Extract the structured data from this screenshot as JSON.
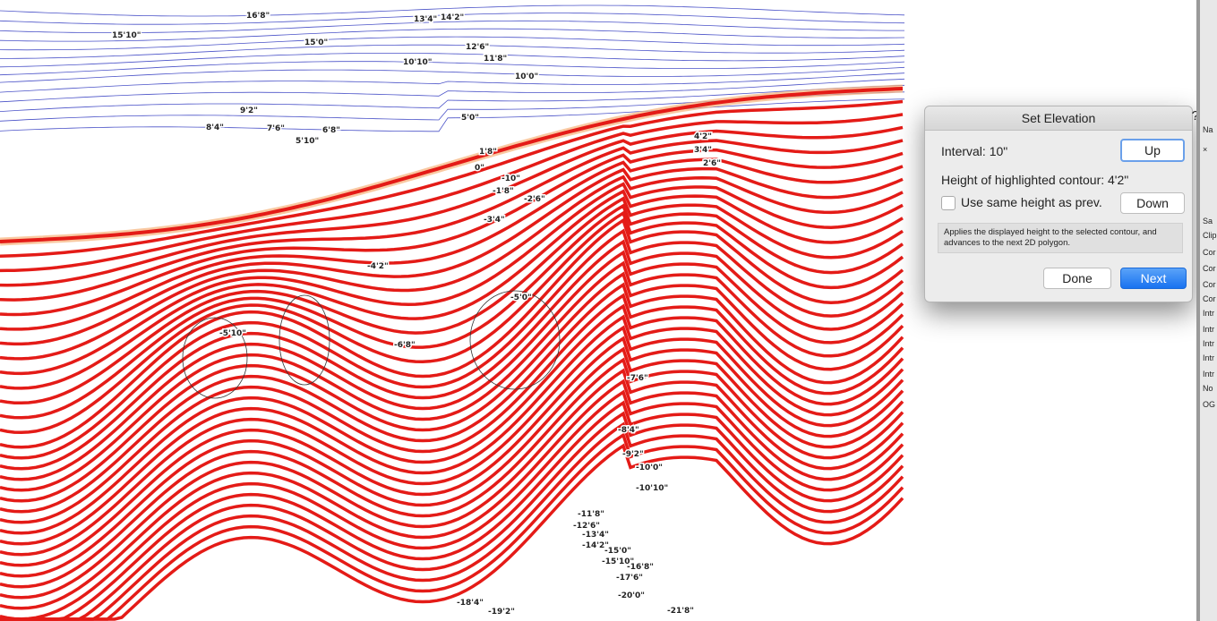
{
  "dialog": {
    "title": "Set Elevation",
    "help": "?",
    "interval": "Interval: 10\"",
    "up": "Up",
    "height": "Height of highlighted contour: 4'2\"",
    "checkbox": "Use same height as prev.",
    "down": "Down",
    "note": "Applies the displayed height to the selected contour, and advances to the next 2D polygon.",
    "done": "Done",
    "next": "Next"
  },
  "side_panel": {
    "items": [
      "Na",
      "×",
      "Sa",
      "Clip",
      "Cor",
      "Cor",
      "Cor",
      "Cor",
      "Intr",
      "Intr",
      "Intr",
      "Intr",
      "Intr",
      "No",
      "OG"
    ]
  },
  "contour_labels": [
    "16'8\"",
    "15'10\"",
    "15'0\"",
    "13'4\"",
    "14'2\"",
    "12'6\"",
    "11'8\"",
    "10'10\"",
    "10'0\"",
    "9'2\"",
    "8'4\"",
    "7'6\"",
    "6'8\"",
    "5'10\"",
    "5'0\"",
    "4'2\"",
    "3'4\"",
    "2'6\"",
    "1'8\"",
    "0\"",
    "-10\"",
    "-1'8\"",
    "-2'6\"",
    "-3'4\"",
    "-4'2\"",
    "-5'0\"",
    "-5'10\"",
    "-6'8\"",
    "-7'6\"",
    "-8'4\"",
    "-9'2\"",
    "-10'0\"",
    "-10'10\"",
    "-11'8\"",
    "-12'6\"",
    "-13'4\"",
    "-14'2\"",
    "-15'0\"",
    "-15'10\"",
    "-16'8\"",
    "-17'6\"",
    "-18'4\"",
    "-19'2\"",
    "-20'0\"",
    "-21'8\""
  ]
}
